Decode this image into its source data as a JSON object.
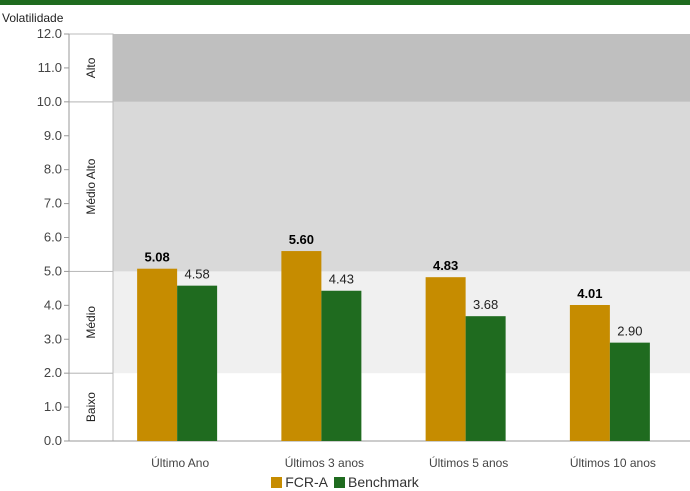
{
  "chart_data": {
    "type": "bar",
    "ylabel": "Volatilidade",
    "ylim": [
      0,
      12
    ],
    "yticks": [
      "0.0",
      "1.0",
      "2.0",
      "3.0",
      "4.0",
      "5.0",
      "6.0",
      "7.0",
      "8.0",
      "9.0",
      "10.0",
      "11.0",
      "12.0"
    ],
    "categories": [
      "Último Ano",
      "Últimos 3 anos",
      "Últimos 5 anos",
      "Últimos 10 anos"
    ],
    "series": [
      {
        "name": "FCR-A",
        "color": "#c68c00",
        "values": [
          5.08,
          5.6,
          4.83,
          4.01
        ],
        "labels": [
          "5.08",
          "5.60",
          "4.83",
          "4.01"
        ]
      },
      {
        "name": "Benchmark",
        "color": "#1f6b1f",
        "values": [
          4.58,
          4.43,
          3.68,
          2.9
        ],
        "labels": [
          "4.58",
          "4.43",
          "3.68",
          "2.90"
        ]
      }
    ],
    "bands": [
      {
        "label": "Baixo",
        "from": 0,
        "to": 2,
        "color": "#ffffff"
      },
      {
        "label": "Médio",
        "from": 2,
        "to": 5,
        "color": "#f0f0f0"
      },
      {
        "label": "Médio Alto",
        "from": 5,
        "to": 10,
        "color": "#d9d9d9"
      },
      {
        "label": "Alto",
        "from": 10,
        "to": 12,
        "color": "#bfbfbf"
      }
    ],
    "legend_position": "bottom"
  }
}
